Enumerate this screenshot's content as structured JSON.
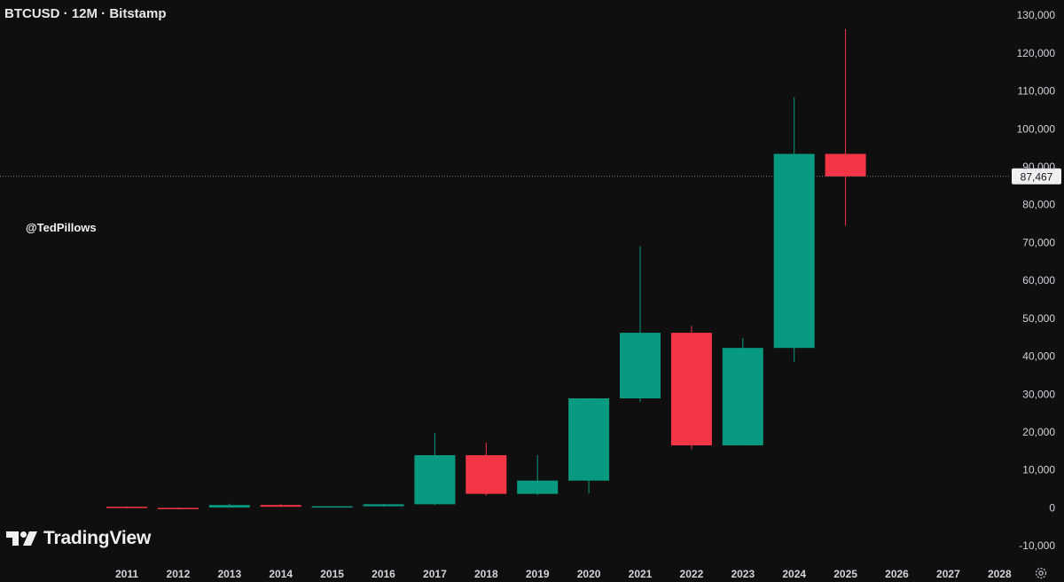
{
  "title": "BTCUSD · 12M · Bitstamp",
  "watermark": "@TedPillows",
  "brand": {
    "name": "TradingView",
    "icon": "tradingview-logo"
  },
  "colors": {
    "background": "#0f0f10",
    "up": "#089981",
    "down": "#f23645",
    "text": "#d1d4dc",
    "price_label_bg": "#f0f0f0",
    "price_label_text": "#131722"
  },
  "settings_icon": "gear-icon",
  "chart_data": {
    "type": "candlestick",
    "symbol": "BTCUSD",
    "interval": "12M",
    "exchange": "Bitstamp",
    "x_ticks": [
      "2011",
      "2012",
      "2013",
      "2014",
      "2015",
      "2016",
      "2017",
      "2018",
      "2019",
      "2020",
      "2021",
      "2022",
      "2023",
      "2024",
      "2025",
      "2026",
      "2027",
      "2028"
    ],
    "y_ticks": [
      "130,000",
      "120,000",
      "110,000",
      "100,000",
      "90,000",
      "80,000",
      "70,000",
      "60,000",
      "50,000",
      "40,000",
      "30,000",
      "20,000",
      "10,000",
      "0",
      "-10,000"
    ],
    "y_tick_values": [
      130000,
      120000,
      110000,
      100000,
      90000,
      80000,
      70000,
      60000,
      50000,
      40000,
      30000,
      20000,
      10000,
      0,
      -10000
    ],
    "ylim": [
      -13000,
      134000
    ],
    "current_price": 87467,
    "current_price_label": "87,467",
    "candles": [
      {
        "year": "2011",
        "open": 300,
        "high": 400,
        "low": -100,
        "close": 0
      },
      {
        "year": "2012",
        "open": 0,
        "high": 100,
        "low": -200,
        "close": -100
      },
      {
        "year": "2013",
        "open": 100,
        "high": 1150,
        "low": 50,
        "close": 750
      },
      {
        "year": "2014",
        "open": 750,
        "high": 1000,
        "low": 250,
        "close": 300
      },
      {
        "year": "2015",
        "open": 300,
        "high": 470,
        "low": 160,
        "close": 430
      },
      {
        "year": "2016",
        "open": 430,
        "high": 980,
        "low": 350,
        "close": 960
      },
      {
        "year": "2017",
        "open": 960,
        "high": 19700,
        "low": 750,
        "close": 13900
      },
      {
        "year": "2018",
        "open": 13900,
        "high": 17200,
        "low": 3200,
        "close": 3700
      },
      {
        "year": "2019",
        "open": 3700,
        "high": 13900,
        "low": 3400,
        "close": 7200
      },
      {
        "year": "2020",
        "open": 7200,
        "high": 29000,
        "low": 3800,
        "close": 28900
      },
      {
        "year": "2021",
        "open": 28900,
        "high": 69000,
        "low": 28000,
        "close": 46200
      },
      {
        "year": "2022",
        "open": 46200,
        "high": 48000,
        "low": 15500,
        "close": 16500
      },
      {
        "year": "2023",
        "open": 16500,
        "high": 44800,
        "low": 16400,
        "close": 42200
      },
      {
        "year": "2024",
        "open": 42200,
        "high": 108300,
        "low": 38500,
        "close": 93400
      },
      {
        "year": "2025",
        "open": 93400,
        "high": 126300,
        "low": 74500,
        "close": 87467
      }
    ]
  }
}
